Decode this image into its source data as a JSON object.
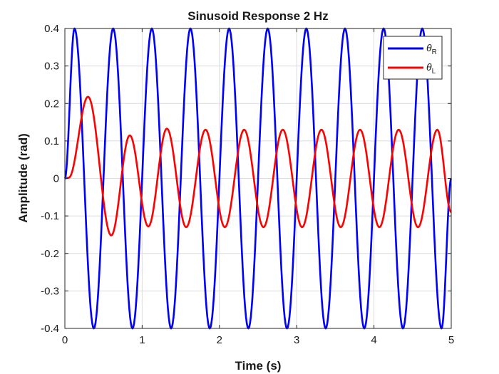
{
  "chart_data": {
    "type": "line",
    "title": "Sinusoid Response 2 Hz",
    "xlabel": "Time (s)",
    "ylabel": "Amplitude (rad)",
    "xlim": [
      0,
      5
    ],
    "ylim": [
      -0.4,
      0.4
    ],
    "xticks": [
      0,
      1,
      2,
      3,
      4,
      5
    ],
    "xtick_labels": [
      "0",
      "1",
      "2",
      "3",
      "4",
      "5"
    ],
    "yticks": [
      0.4,
      0.3,
      0.2,
      0.1,
      0,
      -0.1,
      -0.2,
      -0.3,
      -0.4
    ],
    "ytick_labels": [
      "0.4",
      "0.3",
      "0.2",
      "0.1",
      "0",
      "-0.1",
      "-0.2",
      "-0.3",
      "-0.4"
    ],
    "grid": true,
    "legend_position": "top-right",
    "series": [
      {
        "name": "θ",
        "name_subscript": "R",
        "color": "#0000ff",
        "x": [
          0,
          0.125,
          0.375,
          0.625,
          0.875,
          1.125,
          1.375,
          1.625,
          1.875,
          2.125,
          2.375,
          2.625,
          2.875,
          3.125,
          3.375,
          3.625,
          3.875,
          4.125,
          4.375,
          4.625,
          4.875,
          5
        ],
        "y": [
          0,
          0.4,
          -0.4,
          0.4,
          -0.4,
          0.4,
          -0.4,
          0.4,
          -0.4,
          0.4,
          -0.4,
          0.4,
          -0.4,
          0.4,
          -0.4,
          0.4,
          -0.4,
          0.4,
          -0.4,
          0.4,
          -0.4,
          0
        ]
      },
      {
        "name": "θ",
        "name_subscript": "L",
        "color": "#ff0000",
        "x": [
          0,
          0.05,
          0.3,
          0.6,
          0.84,
          1.08,
          1.32,
          1.57,
          1.82,
          2.07,
          2.32,
          2.57,
          2.82,
          3.07,
          3.32,
          3.57,
          3.82,
          4.07,
          4.32,
          4.57,
          4.82,
          5
        ],
        "y": [
          0,
          0.002,
          0.218,
          -0.152,
          0.115,
          -0.128,
          0.133,
          -0.13,
          0.13,
          -0.13,
          0.13,
          -0.13,
          0.13,
          -0.13,
          0.13,
          -0.13,
          0.13,
          -0.13,
          0.13,
          -0.13,
          0.13,
          -0.09
        ]
      }
    ]
  }
}
